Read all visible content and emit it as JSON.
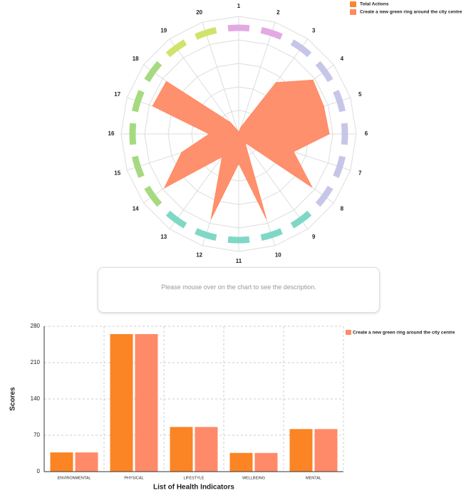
{
  "chart_data": [
    {
      "type": "radar",
      "categories": [
        "1",
        "2",
        "3",
        "4",
        "5",
        "6",
        "7",
        "8",
        "9",
        "10",
        "11",
        "12",
        "13",
        "14",
        "15",
        "16",
        "17",
        "18",
        "19",
        "20"
      ],
      "rlim": [
        0,
        100
      ],
      "rticks": [
        20,
        40,
        60,
        80,
        100
      ],
      "ring_colors": [
        "#e3a9e3",
        "#e3a9e3",
        "#c6c6e8",
        "#c6c6e8",
        "#c6c6e8",
        "#c6c6e8",
        "#c6c6e8",
        "#c6c6e8",
        "#7fd8c6",
        "#7fd8c6",
        "#7fd8c6",
        "#7fd8c6",
        "#7fd8c6",
        "#a6da80",
        "#a6da80",
        "#a6da80",
        "#a6da80",
        "#a6da80",
        "#cfe46a",
        "#cfe46a"
      ],
      "series": [
        {
          "name": "Total Actions",
          "color": "#f7882f"
        },
        {
          "name": "Create a new green ring around the city centre",
          "color": "#ff8a65",
          "values": [
            1,
            6,
            54,
            78,
            76,
            77,
            49,
            77,
            9,
            76,
            25,
            76,
            24,
            78,
            51,
            25,
            77,
            76,
            12,
            3
          ]
        }
      ]
    },
    {
      "type": "bar",
      "categories": [
        "ENVIRONMENTAL",
        "PHYSICAL",
        "LIFESTYLE",
        "WELLBEING",
        "MENTAL"
      ],
      "ylabel": "Scores",
      "xlabel": "List of Health Indicators",
      "ylim": [
        0,
        280
      ],
      "yticks": [
        0,
        70,
        140,
        210,
        280
      ],
      "grid": true,
      "series": [
        {
          "color": "#fb8424",
          "values": [
            37,
            265,
            86,
            36,
            82
          ]
        },
        {
          "name": "Create a new green ring around the city centre",
          "color": "#ff8a6a",
          "values": [
            37,
            265,
            86,
            36,
            82
          ]
        }
      ]
    }
  ],
  "description_box": {
    "text": "Please mouse over on the chart to see the description."
  }
}
